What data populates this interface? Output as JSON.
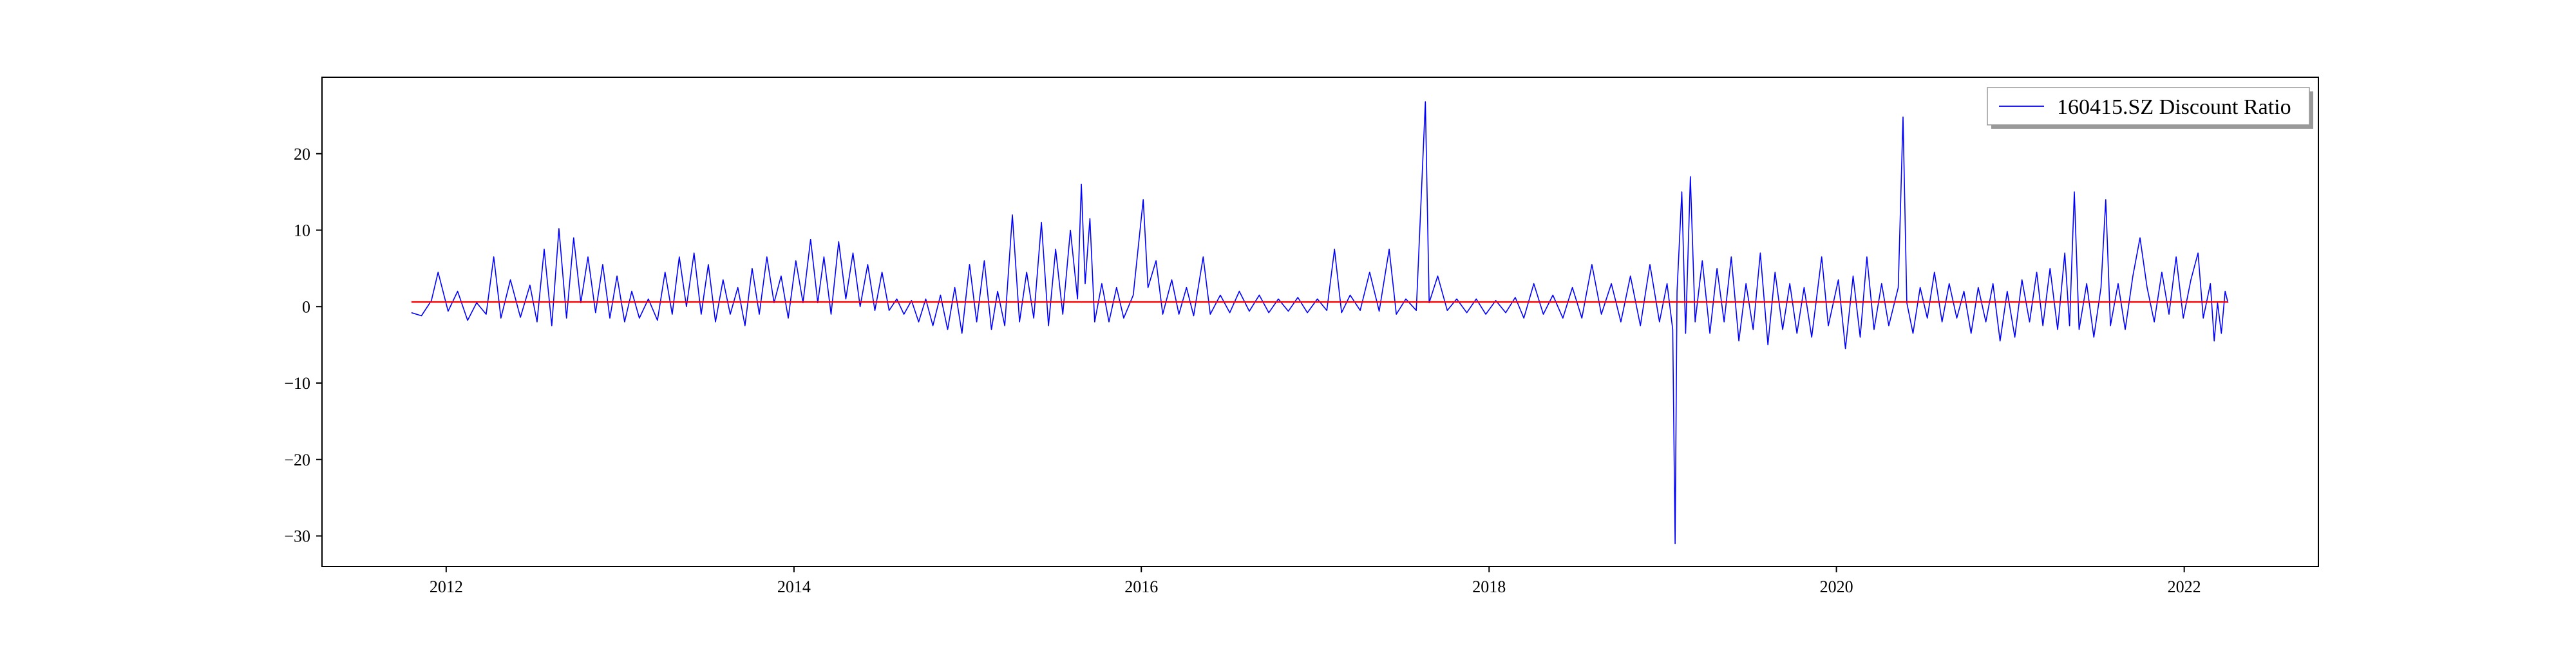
{
  "chart_data": {
    "type": "line",
    "title": "",
    "xlabel": "",
    "ylabel": "",
    "x_range": [
      "2011-04-15",
      "2022-10-10"
    ],
    "ylim": [
      -34,
      30
    ],
    "x_ticks": [
      "2012",
      "2014",
      "2016",
      "2018",
      "2020",
      "2022"
    ],
    "y_ticks": [
      20,
      10,
      0,
      -10,
      -20,
      -30
    ],
    "grid": false,
    "legend": {
      "position": "top-right",
      "shadow": true
    },
    "series": [
      {
        "name": "160415.SZ Discount Ratio",
        "color": "#0000ff",
        "points": [
          [
            "2011-10-20",
            -0.8
          ],
          [
            "2011-11-10",
            -1.2
          ],
          [
            "2011-12-01",
            0.8
          ],
          [
            "2011-12-15",
            4.5
          ],
          [
            "2012-01-05",
            -0.6
          ],
          [
            "2012-01-25",
            2.0
          ],
          [
            "2012-02-15",
            -1.8
          ],
          [
            "2012-03-05",
            0.5
          ],
          [
            "2012-03-25",
            -1.0
          ],
          [
            "2012-04-10",
            6.5
          ],
          [
            "2012-04-25",
            -1.5
          ],
          [
            "2012-05-15",
            3.5
          ],
          [
            "2012-06-05",
            -1.4
          ],
          [
            "2012-06-25",
            2.8
          ],
          [
            "2012-07-10",
            -2.0
          ],
          [
            "2012-07-25",
            7.5
          ],
          [
            "2012-08-10",
            -2.5
          ],
          [
            "2012-08-25",
            10.2
          ],
          [
            "2012-09-10",
            -1.5
          ],
          [
            "2012-09-25",
            9.0
          ],
          [
            "2012-10-10",
            0.5
          ],
          [
            "2012-10-25",
            6.5
          ],
          [
            "2012-11-10",
            -0.8
          ],
          [
            "2012-11-25",
            5.5
          ],
          [
            "2012-12-10",
            -1.5
          ],
          [
            "2012-12-25",
            4.0
          ],
          [
            "2013-01-10",
            -2.0
          ],
          [
            "2013-01-25",
            2.0
          ],
          [
            "2013-02-10",
            -1.5
          ],
          [
            "2013-03-01",
            1.0
          ],
          [
            "2013-03-20",
            -1.8
          ],
          [
            "2013-04-05",
            4.5
          ],
          [
            "2013-04-20",
            -1.0
          ],
          [
            "2013-05-05",
            6.5
          ],
          [
            "2013-05-20",
            0.0
          ],
          [
            "2013-06-05",
            7.0
          ],
          [
            "2013-06-20",
            -1.0
          ],
          [
            "2013-07-05",
            5.5
          ],
          [
            "2013-07-20",
            -2.0
          ],
          [
            "2013-08-05",
            3.5
          ],
          [
            "2013-08-20",
            -1.0
          ],
          [
            "2013-09-05",
            2.5
          ],
          [
            "2013-09-20",
            -2.5
          ],
          [
            "2013-10-05",
            5.0
          ],
          [
            "2013-10-20",
            -1.0
          ],
          [
            "2013-11-05",
            6.5
          ],
          [
            "2013-11-20",
            0.5
          ],
          [
            "2013-12-05",
            4.0
          ],
          [
            "2013-12-20",
            -1.5
          ],
          [
            "2014-01-05",
            6.0
          ],
          [
            "2014-01-20",
            0.5
          ],
          [
            "2014-02-05",
            8.8
          ],
          [
            "2014-02-20",
            0.5
          ],
          [
            "2014-03-05",
            6.5
          ],
          [
            "2014-03-20",
            -1.0
          ],
          [
            "2014-04-05",
            8.5
          ],
          [
            "2014-04-20",
            1.0
          ],
          [
            "2014-05-05",
            7.0
          ],
          [
            "2014-05-20",
            0.0
          ],
          [
            "2014-06-05",
            5.5
          ],
          [
            "2014-06-20",
            -0.5
          ],
          [
            "2014-07-05",
            4.5
          ],
          [
            "2014-07-20",
            -0.5
          ],
          [
            "2014-08-05",
            1.0
          ],
          [
            "2014-08-20",
            -1.0
          ],
          [
            "2014-09-05",
            0.8
          ],
          [
            "2014-09-20",
            -2.0
          ],
          [
            "2014-10-05",
            1.0
          ],
          [
            "2014-10-20",
            -2.5
          ],
          [
            "2014-11-05",
            1.5
          ],
          [
            "2014-11-20",
            -3.0
          ],
          [
            "2014-12-05",
            2.5
          ],
          [
            "2014-12-20",
            -3.5
          ],
          [
            "2015-01-05",
            5.5
          ],
          [
            "2015-01-20",
            -2.0
          ],
          [
            "2015-02-05",
            6.0
          ],
          [
            "2015-02-20",
            -3.0
          ],
          [
            "2015-03-05",
            2.0
          ],
          [
            "2015-03-20",
            -2.5
          ],
          [
            "2015-04-05",
            12.0
          ],
          [
            "2015-04-20",
            -2.0
          ],
          [
            "2015-05-05",
            4.5
          ],
          [
            "2015-05-20",
            -1.5
          ],
          [
            "2015-06-05",
            11.0
          ],
          [
            "2015-06-20",
            -2.5
          ],
          [
            "2015-07-05",
            7.5
          ],
          [
            "2015-07-20",
            -1.0
          ],
          [
            "2015-08-05",
            10.0
          ],
          [
            "2015-08-20",
            1.0
          ],
          [
            "2015-08-28",
            16.0
          ],
          [
            "2015-09-05",
            3.0
          ],
          [
            "2015-09-15",
            11.5
          ],
          [
            "2015-09-25",
            -2.0
          ],
          [
            "2015-10-10",
            3.0
          ],
          [
            "2015-10-25",
            -2.0
          ],
          [
            "2015-11-10",
            2.5
          ],
          [
            "2015-11-25",
            -1.5
          ],
          [
            "2015-12-15",
            1.5
          ],
          [
            "2016-01-05",
            14.0
          ],
          [
            "2016-01-15",
            2.5
          ],
          [
            "2016-02-01",
            6.0
          ],
          [
            "2016-02-15",
            -1.0
          ],
          [
            "2016-03-05",
            3.5
          ],
          [
            "2016-03-20",
            -1.0
          ],
          [
            "2016-04-05",
            2.5
          ],
          [
            "2016-04-20",
            -1.2
          ],
          [
            "2016-05-10",
            6.5
          ],
          [
            "2016-05-25",
            -1.0
          ],
          [
            "2016-06-15",
            1.5
          ],
          [
            "2016-07-05",
            -0.8
          ],
          [
            "2016-07-25",
            2.0
          ],
          [
            "2016-08-15",
            -0.6
          ],
          [
            "2016-09-05",
            1.5
          ],
          [
            "2016-09-25",
            -0.8
          ],
          [
            "2016-10-15",
            1.0
          ],
          [
            "2016-11-05",
            -0.6
          ],
          [
            "2016-11-25",
            1.2
          ],
          [
            "2016-12-15",
            -0.8
          ],
          [
            "2017-01-05",
            1.0
          ],
          [
            "2017-01-25",
            -0.5
          ],
          [
            "2017-02-10",
            7.5
          ],
          [
            "2017-02-25",
            -0.8
          ],
          [
            "2017-03-15",
            1.5
          ],
          [
            "2017-04-05",
            -0.5
          ],
          [
            "2017-04-25",
            4.5
          ],
          [
            "2017-05-15",
            -0.6
          ],
          [
            "2017-06-05",
            7.5
          ],
          [
            "2017-06-20",
            -1.0
          ],
          [
            "2017-07-10",
            1.0
          ],
          [
            "2017-08-01",
            -0.5
          ],
          [
            "2017-08-20",
            26.8
          ],
          [
            "2017-08-28",
            0.5
          ],
          [
            "2017-09-15",
            4.0
          ],
          [
            "2017-10-05",
            -0.5
          ],
          [
            "2017-10-25",
            1.0
          ],
          [
            "2017-11-15",
            -0.8
          ],
          [
            "2017-12-05",
            1.0
          ],
          [
            "2017-12-25",
            -1.0
          ],
          [
            "2018-01-15",
            0.8
          ],
          [
            "2018-02-05",
            -0.8
          ],
          [
            "2018-02-25",
            1.2
          ],
          [
            "2018-03-15",
            -1.5
          ],
          [
            "2018-04-05",
            3.0
          ],
          [
            "2018-04-25",
            -1.0
          ],
          [
            "2018-05-15",
            1.5
          ],
          [
            "2018-06-05",
            -1.5
          ],
          [
            "2018-06-25",
            2.5
          ],
          [
            "2018-07-15",
            -1.5
          ],
          [
            "2018-08-05",
            5.5
          ],
          [
            "2018-08-25",
            -1.0
          ],
          [
            "2018-09-15",
            3.0
          ],
          [
            "2018-10-05",
            -2.0
          ],
          [
            "2018-10-25",
            4.0
          ],
          [
            "2018-11-15",
            -2.5
          ],
          [
            "2018-12-05",
            5.5
          ],
          [
            "2018-12-25",
            -2.0
          ],
          [
            "2019-01-10",
            3.0
          ],
          [
            "2019-01-22",
            -3.0
          ],
          [
            "2019-01-27",
            -31.0
          ],
          [
            "2019-01-31",
            2.0
          ],
          [
            "2019-02-10",
            15.0
          ],
          [
            "2019-02-18",
            -3.5
          ],
          [
            "2019-02-28",
            17.0
          ],
          [
            "2019-03-10",
            -2.0
          ],
          [
            "2019-03-25",
            6.0
          ],
          [
            "2019-04-10",
            -3.5
          ],
          [
            "2019-04-25",
            5.0
          ],
          [
            "2019-05-10",
            -2.0
          ],
          [
            "2019-05-25",
            6.5
          ],
          [
            "2019-06-10",
            -4.5
          ],
          [
            "2019-06-25",
            3.0
          ],
          [
            "2019-07-10",
            -3.0
          ],
          [
            "2019-07-25",
            7.0
          ],
          [
            "2019-08-10",
            -5.0
          ],
          [
            "2019-08-25",
            4.5
          ],
          [
            "2019-09-10",
            -3.0
          ],
          [
            "2019-09-25",
            3.0
          ],
          [
            "2019-10-10",
            -3.5
          ],
          [
            "2019-10-25",
            2.5
          ],
          [
            "2019-11-10",
            -4.0
          ],
          [
            "2019-12-01",
            6.5
          ],
          [
            "2019-12-15",
            -2.5
          ],
          [
            "2020-01-05",
            3.5
          ],
          [
            "2020-01-20",
            -5.5
          ],
          [
            "2020-02-05",
            4.0
          ],
          [
            "2020-02-20",
            -4.0
          ],
          [
            "2020-03-05",
            6.5
          ],
          [
            "2020-03-20",
            -3.0
          ],
          [
            "2020-04-05",
            3.0
          ],
          [
            "2020-04-20",
            -2.5
          ],
          [
            "2020-05-10",
            2.5
          ],
          [
            "2020-05-20",
            24.8
          ],
          [
            "2020-05-28",
            0.5
          ],
          [
            "2020-06-10",
            -3.5
          ],
          [
            "2020-06-25",
            2.5
          ],
          [
            "2020-07-10",
            -1.5
          ],
          [
            "2020-07-25",
            4.5
          ],
          [
            "2020-08-10",
            -2.0
          ],
          [
            "2020-08-25",
            3.0
          ],
          [
            "2020-09-10",
            -1.5
          ],
          [
            "2020-09-25",
            2.0
          ],
          [
            "2020-10-10",
            -3.5
          ],
          [
            "2020-10-25",
            2.5
          ],
          [
            "2020-11-10",
            -2.0
          ],
          [
            "2020-11-25",
            3.0
          ],
          [
            "2020-12-10",
            -4.5
          ],
          [
            "2020-12-25",
            2.0
          ],
          [
            "2021-01-10",
            -4.0
          ],
          [
            "2021-01-25",
            3.5
          ],
          [
            "2021-02-10",
            -2.0
          ],
          [
            "2021-02-25",
            4.5
          ],
          [
            "2021-03-10",
            -2.5
          ],
          [
            "2021-03-25",
            5.0
          ],
          [
            "2021-04-10",
            -3.0
          ],
          [
            "2021-04-25",
            7.0
          ],
          [
            "2021-05-05",
            -2.5
          ],
          [
            "2021-05-15",
            15.0
          ],
          [
            "2021-05-25",
            -3.0
          ],
          [
            "2021-06-10",
            3.0
          ],
          [
            "2021-06-25",
            -4.0
          ],
          [
            "2021-07-10",
            2.5
          ],
          [
            "2021-07-20",
            14.0
          ],
          [
            "2021-07-30",
            -2.5
          ],
          [
            "2021-08-15",
            3.0
          ],
          [
            "2021-08-30",
            -3.0
          ],
          [
            "2021-09-15",
            4.0
          ],
          [
            "2021-09-30",
            9.0
          ],
          [
            "2021-10-15",
            2.5
          ],
          [
            "2021-10-30",
            -2.0
          ],
          [
            "2021-11-15",
            4.5
          ],
          [
            "2021-11-30",
            -1.0
          ],
          [
            "2021-12-15",
            6.5
          ],
          [
            "2021-12-30",
            -1.5
          ],
          [
            "2022-01-15",
            3.5
          ],
          [
            "2022-01-30",
            7.0
          ],
          [
            "2022-02-10",
            -1.5
          ],
          [
            "2022-02-25",
            3.0
          ],
          [
            "2022-03-05",
            -4.5
          ],
          [
            "2022-03-12",
            0.5
          ],
          [
            "2022-03-20",
            -3.5
          ],
          [
            "2022-03-28",
            2.0
          ],
          [
            "2022-04-03",
            0.5
          ]
        ]
      },
      {
        "name": "",
        "color": "#ff0000",
        "points": [
          [
            "2011-10-20",
            0.6
          ],
          [
            "2022-04-03",
            0.6
          ]
        ]
      }
    ]
  }
}
